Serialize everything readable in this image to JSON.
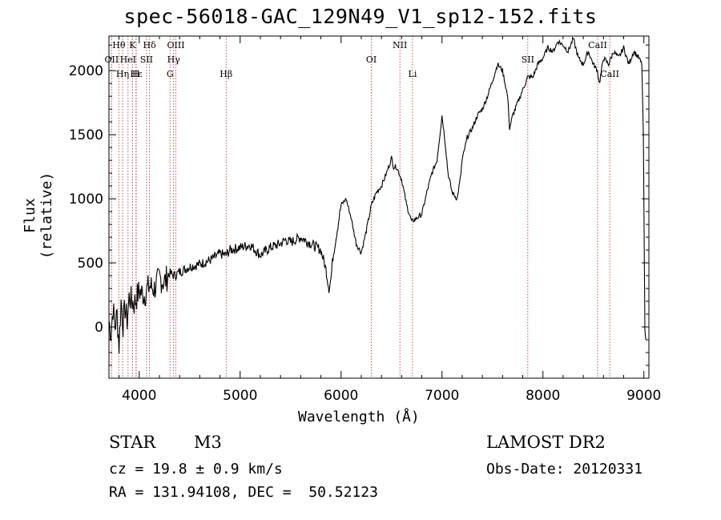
{
  "chart_data": {
    "type": "line",
    "title": "spec-56018-GAC_129N49_V1_sp12-152.fits",
    "xlabel": "Wavelength (Å)",
    "ylabel": "Flux (relative)",
    "xlim": [
      3700,
      9050
    ],
    "ylim": [
      -400,
      2270
    ],
    "xticks": [
      4000,
      5000,
      6000,
      7000,
      8000,
      9000
    ],
    "yticks": [
      0,
      500,
      1000,
      1500,
      2000
    ],
    "grid": false,
    "series": [
      {
        "x": [
          3700,
          3720,
          3740,
          3760,
          3780,
          3800,
          3820,
          3840,
          3860,
          3880,
          3900,
          3950,
          4000,
          4050,
          4100,
          4150,
          4200,
          4250,
          4300,
          4350,
          4400,
          4500,
          4600,
          4700,
          4800,
          4860,
          4900,
          5000,
          5100,
          5200,
          5300,
          5400,
          5450,
          5500,
          5600,
          5700,
          5800,
          5850,
          5880,
          5900,
          5920,
          5950,
          6000,
          6050,
          6100,
          6150,
          6200,
          6250,
          6300,
          6350,
          6400,
          6450,
          6500,
          6520,
          6550,
          6600,
          6650,
          6700,
          6750,
          6800,
          6850,
          6900,
          6950,
          7000,
          7030,
          7060,
          7100,
          7150,
          7180,
          7200,
          7250,
          7300,
          7350,
          7400,
          7450,
          7500,
          7550,
          7600,
          7650,
          7670,
          7700,
          7750,
          7800,
          7850,
          7900,
          7950,
          8000,
          8050,
          8100,
          8150,
          8200,
          8250,
          8300,
          8350,
          8400,
          8450,
          8500,
          8540,
          8560,
          8600,
          8650,
          8700,
          8750,
          8800,
          8850,
          8900,
          8950,
          8980,
          8995,
          9000,
          9010,
          9020
        ],
        "values": [
          50,
          -50,
          150,
          0,
          100,
          -150,
          200,
          20,
          150,
          50,
          230,
          180,
          280,
          250,
          320,
          300,
          380,
          350,
          420,
          400,
          430,
          470,
          490,
          520,
          570,
          560,
          600,
          620,
          640,
          560,
          620,
          650,
          680,
          660,
          700,
          650,
          600,
          450,
          300,
          380,
          550,
          700,
          950,
          1000,
          850,
          650,
          580,
          750,
          950,
          1050,
          1100,
          1200,
          1320,
          1250,
          1250,
          1150,
          950,
          820,
          850,
          880,
          1050,
          1200,
          1300,
          1650,
          1450,
          1200,
          1050,
          1000,
          1150,
          1300,
          1480,
          1550,
          1650,
          1700,
          1800,
          1920,
          2050,
          2000,
          1800,
          1550,
          1650,
          1750,
          1850,
          1950,
          1950,
          2050,
          2100,
          2180,
          2150,
          2230,
          2200,
          2150,
          2250,
          2100,
          2050,
          2150,
          2050,
          2000,
          1900,
          2100,
          2050,
          2150,
          2100,
          2180,
          2050,
          2150,
          2100,
          2050,
          1500,
          1000,
          0,
          -100
        ]
      }
    ],
    "line_markers": [
      {
        "label": "Hθ",
        "x": 3798,
        "row": 1
      },
      {
        "label": "OII",
        "x": 3727,
        "row": 2
      },
      {
        "label": "Hη",
        "x": 3835,
        "row": 3
      },
      {
        "label": "K",
        "x": 3934,
        "row": 1
      },
      {
        "label": "HeI",
        "x": 3889,
        "row": 2
      },
      {
        "label": "Hε",
        "x": 3970,
        "row": 3
      },
      {
        "label": "Hδ",
        "x": 4102,
        "row": 1
      },
      {
        "label": "SII",
        "x": 4072,
        "row": 2
      },
      {
        "label": "H",
        "x": 3968,
        "row": 3
      },
      {
        "label": "OIII",
        "x": 4363,
        "row": 1
      },
      {
        "label": "Hγ",
        "x": 4341,
        "row": 2
      },
      {
        "label": "G",
        "x": 4305,
        "row": 3
      },
      {
        "label": "Hβ",
        "x": 4861,
        "row": 3
      },
      {
        "label": "OI",
        "x": 6300,
        "row": 2
      },
      {
        "label": "NII",
        "x": 6583,
        "row": 1
      },
      {
        "label": "Li",
        "x": 6708,
        "row": 3
      },
      {
        "label": "SII",
        "x": 7850,
        "row": 2
      },
      {
        "label": "CaII",
        "x": 8542,
        "row": 1
      },
      {
        "label": "CaII",
        "x": 8662,
        "row": 3
      }
    ],
    "marker_color": "#b03030"
  },
  "info": {
    "class_label": "STAR",
    "subclass": "M3",
    "survey": "LAMOST DR2",
    "cz": "cz = 19.8 ± 0.9 km/s",
    "obs_date": "Obs-Date: 20120331",
    "radec": "RA = 131.94108, DEC =  50.52123"
  }
}
